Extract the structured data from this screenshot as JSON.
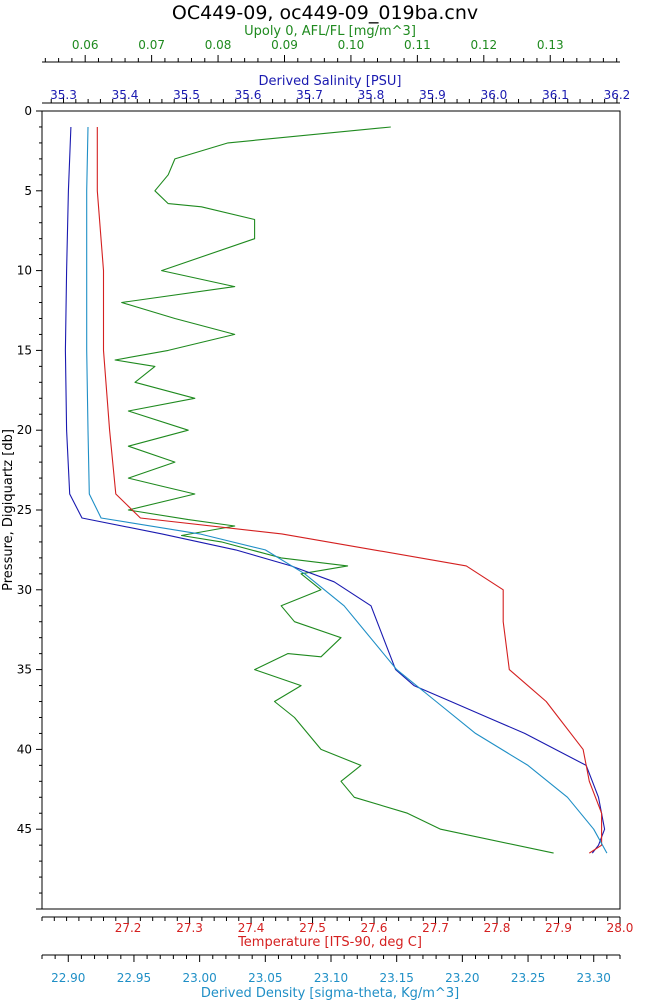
{
  "chart_data": {
    "type": "line",
    "title": "OC449-09, oc449-09_019ba.cnv",
    "y_axis": {
      "label": "Pressure, Digiquartz [db]",
      "range": [
        0,
        50
      ],
      "inverted": true,
      "ticks": [
        0,
        5,
        10,
        15,
        20,
        25,
        30,
        35,
        40,
        45
      ]
    },
    "x_axes": [
      {
        "id": "fluor",
        "position": "top-1",
        "label": "Upoly 0, AFL/FL [mg/m^3]",
        "color": "#1f8a1f",
        "range": [
          0.0535,
          0.1405
        ],
        "ticks": [
          "0.06",
          "0.07",
          "0.08",
          "0.09",
          "0.10",
          "0.11",
          "0.12",
          "0.13"
        ]
      },
      {
        "id": "sal",
        "position": "top-2",
        "label": "Derived Salinity [PSU]",
        "color": "#1a1ab0",
        "range": [
          35.265,
          36.205
        ],
        "ticks": [
          "35.3",
          "35.4",
          "35.5",
          "35.6",
          "35.7",
          "35.8",
          "35.9",
          "36.0",
          "36.1",
          "36.2"
        ]
      },
      {
        "id": "temp",
        "position": "bottom-1",
        "label": "Temperature [ITS-90, deg C]",
        "color": "#d42020",
        "range": [
          27.06,
          28.0
        ],
        "ticks": [
          "27.2",
          "27.3",
          "27.4",
          "27.5",
          "27.6",
          "27.7",
          "27.8",
          "27.9",
          "28.0"
        ]
      },
      {
        "id": "dens",
        "position": "bottom-2",
        "label": "Derived Density [sigma-theta, Kg/m^3]",
        "color": "#1f8fc6",
        "range": [
          22.88,
          23.32
        ],
        "ticks": [
          "22.90",
          "22.95",
          "23.00",
          "23.05",
          "23.10",
          "23.15",
          "23.20",
          "23.25",
          "23.30"
        ]
      }
    ],
    "series": [
      {
        "axis": "fluor",
        "color": "#1f8a1f",
        "points": [
          [
            0.106,
            1
          ],
          [
            0.0815,
            2
          ],
          [
            0.0735,
            3
          ],
          [
            0.0725,
            4
          ],
          [
            0.0705,
            5
          ],
          [
            0.0725,
            5.8
          ],
          [
            0.0775,
            6
          ],
          [
            0.0855,
            6.8
          ],
          [
            0.0855,
            8
          ],
          [
            0.0715,
            10
          ],
          [
            0.0825,
            11
          ],
          [
            0.0655,
            12
          ],
          [
            0.0735,
            13
          ],
          [
            0.0825,
            14
          ],
          [
            0.0725,
            15
          ],
          [
            0.0645,
            15.6
          ],
          [
            0.0705,
            16
          ],
          [
            0.0675,
            17
          ],
          [
            0.0765,
            18
          ],
          [
            0.0665,
            18.8
          ],
          [
            0.0755,
            20
          ],
          [
            0.0665,
            21
          ],
          [
            0.0735,
            22
          ],
          [
            0.0665,
            23
          ],
          [
            0.0715,
            23.5
          ],
          [
            0.0765,
            24
          ],
          [
            0.0665,
            25
          ],
          [
            0.0755,
            25.6
          ],
          [
            0.0825,
            26
          ],
          [
            0.0745,
            26.6
          ],
          [
            0.0805,
            27
          ],
          [
            0.0895,
            28
          ],
          [
            0.0995,
            28.5
          ],
          [
            0.0925,
            29
          ],
          [
            0.0955,
            30
          ],
          [
            0.0895,
            31
          ],
          [
            0.0915,
            32
          ],
          [
            0.0985,
            33
          ],
          [
            0.0955,
            34.2
          ],
          [
            0.0905,
            34
          ],
          [
            0.0855,
            35
          ],
          [
            0.0925,
            36
          ],
          [
            0.0885,
            37
          ],
          [
            0.0915,
            38
          ],
          [
            0.0935,
            39
          ],
          [
            0.0955,
            40
          ],
          [
            0.1015,
            41
          ],
          [
            0.0985,
            42
          ],
          [
            0.1005,
            43
          ],
          [
            0.1085,
            44
          ],
          [
            0.1135,
            45
          ],
          [
            0.1305,
            46.5
          ]
        ]
      },
      {
        "axis": "sal",
        "color": "#1a1ab0",
        "points": [
          [
            35.312,
            1
          ],
          [
            35.308,
            5
          ],
          [
            35.305,
            10
          ],
          [
            35.303,
            15
          ],
          [
            35.305,
            20
          ],
          [
            35.31,
            24
          ],
          [
            35.33,
            25.5
          ],
          [
            35.46,
            26.5
          ],
          [
            35.58,
            27.5
          ],
          [
            35.67,
            28.5
          ],
          [
            35.74,
            29.5
          ],
          [
            35.8,
            31
          ],
          [
            35.81,
            32
          ],
          [
            35.83,
            34
          ],
          [
            35.84,
            35
          ],
          [
            35.87,
            36
          ],
          [
            35.93,
            37
          ],
          [
            35.99,
            38
          ],
          [
            36.05,
            39
          ],
          [
            36.1,
            40
          ],
          [
            36.15,
            41
          ],
          [
            36.17,
            43
          ],
          [
            36.18,
            45
          ],
          [
            36.17,
            46
          ],
          [
            36.16,
            46.5
          ]
        ]
      },
      {
        "axis": "temp",
        "color": "#d42020",
        "points": [
          [
            27.15,
            1
          ],
          [
            27.15,
            5
          ],
          [
            27.16,
            10
          ],
          [
            27.16,
            15
          ],
          [
            27.17,
            20
          ],
          [
            27.18,
            24
          ],
          [
            27.22,
            25.5
          ],
          [
            27.45,
            26.5
          ],
          [
            27.6,
            27.5
          ],
          [
            27.75,
            28.5
          ],
          [
            27.81,
            30
          ],
          [
            27.81,
            32
          ],
          [
            27.82,
            35
          ],
          [
            27.85,
            36
          ],
          [
            27.88,
            37
          ],
          [
            27.9,
            38
          ],
          [
            27.92,
            39
          ],
          [
            27.94,
            40
          ],
          [
            27.95,
            42
          ],
          [
            27.97,
            44
          ],
          [
            27.97,
            46
          ],
          [
            27.95,
            46.5
          ]
        ]
      },
      {
        "axis": "dens",
        "color": "#1f8fc6",
        "points": [
          [
            22.915,
            1
          ],
          [
            22.914,
            5
          ],
          [
            22.914,
            10
          ],
          [
            22.914,
            15
          ],
          [
            22.915,
            20
          ],
          [
            22.916,
            24
          ],
          [
            22.925,
            25.5
          ],
          [
            23.0,
            26.5
          ],
          [
            23.05,
            27.5
          ],
          [
            23.08,
            29
          ],
          [
            23.11,
            31
          ],
          [
            23.13,
            33
          ],
          [
            23.15,
            35
          ],
          [
            23.18,
            37
          ],
          [
            23.21,
            39
          ],
          [
            23.25,
            41
          ],
          [
            23.28,
            43
          ],
          [
            23.3,
            45
          ],
          [
            23.31,
            46.5
          ]
        ]
      }
    ]
  }
}
